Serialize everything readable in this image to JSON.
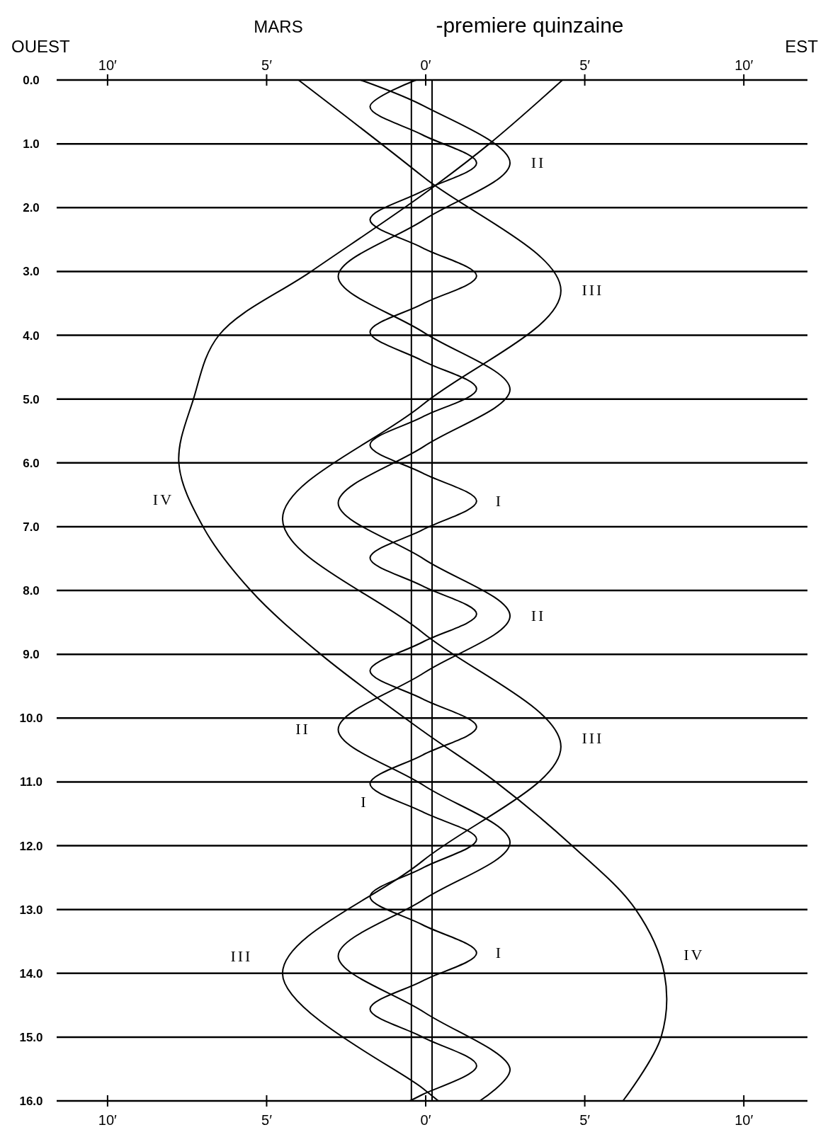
{
  "chart_data": {
    "type": "line",
    "title": "MARS",
    "subtitle": "-premiere quinzaine",
    "xlim": [
      -11.6,
      12
    ],
    "ylim": [
      16,
      0
    ],
    "xticks": [
      {
        "value": -10,
        "label": "10′"
      },
      {
        "value": -5,
        "label": "5′"
      },
      {
        "value": 0,
        "label": "0′"
      },
      {
        "value": 5,
        "label": "5′"
      },
      {
        "value": 10,
        "label": "10′"
      }
    ],
    "x2lim": [
      -11.6,
      12
    ],
    "x2ticks": [
      {
        "value": -10,
        "label": "10′"
      },
      {
        "value": -5,
        "label": "5′"
      },
      {
        "value": 0,
        "label": "0′"
      },
      {
        "value": 5,
        "label": "5′"
      },
      {
        "value": 10,
        "label": "10′"
      }
    ],
    "yticks": [
      {
        "value": 0,
        "label": "0.0"
      },
      {
        "value": 1,
        "label": "1.0"
      },
      {
        "value": 2,
        "label": "2.0"
      },
      {
        "value": 3,
        "label": "3.0"
      },
      {
        "value": 4,
        "label": "4.0"
      },
      {
        "value": 5,
        "label": "5.0"
      },
      {
        "value": 6,
        "label": "6.0"
      },
      {
        "value": 7,
        "label": "7.0"
      },
      {
        "value": 8,
        "label": "8.0"
      },
      {
        "value": 9,
        "label": "9.0"
      },
      {
        "value": 10,
        "label": "10.0"
      },
      {
        "value": 11,
        "label": "11.0"
      },
      {
        "value": 12,
        "label": "12.0"
      },
      {
        "value": 13,
        "label": "13.0"
      },
      {
        "value": 14,
        "label": "14.0"
      },
      {
        "value": 15,
        "label": "15.0"
      },
      {
        "value": 16,
        "label": "16.0"
      }
    ],
    "grid": "y",
    "marker": "none",
    "line_style": "solid",
    "series": [
      {
        "name": "I",
        "color": "#000000",
        "x": [
          -0.3,
          -1.75,
          -0.1,
          1.6,
          -0.1,
          -1.75,
          -0.1,
          1.6,
          -0.1,
          -1.75,
          -0.1,
          1.6,
          -0.1,
          -1.75,
          -0.1,
          1.6,
          -0.1,
          -1.75,
          -0.1,
          1.6,
          -0.1,
          -1.75,
          -0.1,
          1.6,
          -0.1,
          -1.75,
          -0.1,
          1.6,
          -0.1,
          -1.75,
          -0.1,
          1.6,
          -0.1,
          -1.75,
          -0.1,
          1.6,
          -0.1,
          -0.5
        ],
        "values": [
          0,
          0.42,
          0.86,
          1.3,
          1.74,
          2.19,
          2.63,
          3.07,
          3.51,
          3.95,
          4.4,
          4.84,
          5.28,
          5.72,
          6.16,
          6.6,
          7.05,
          7.49,
          7.93,
          8.37,
          8.81,
          9.26,
          9.7,
          10.14,
          10.58,
          11.03,
          11.47,
          11.9,
          12.35,
          12.8,
          13.24,
          13.68,
          14.12,
          14.56,
          15,
          15.45,
          15.9,
          16
        ]
      },
      {
        "name": "II",
        "color": "#000000",
        "x": [
          -2.05,
          -0.05,
          2.65,
          -0.05,
          -2.75,
          -0.05,
          2.65,
          -0.05,
          -2.75,
          -0.05,
          2.65,
          -0.05,
          -2.75,
          -0.05,
          2.65,
          -0.05,
          -2.75,
          -0.05,
          2.65,
          1.7
        ],
        "values": [
          0,
          0.41,
          1.3,
          2.19,
          3.08,
          3.96,
          4.85,
          5.74,
          6.63,
          7.51,
          8.4,
          9.29,
          10.18,
          11.06,
          11.95,
          12.84,
          13.73,
          14.61,
          15.5,
          16
        ]
      },
      {
        "name": "III",
        "color": "#000000",
        "x": [
          -4,
          -0.1,
          4.25,
          -0.1,
          -4.5,
          -0.1,
          4.25,
          -0.1,
          -4.5,
          -0.1,
          0.4
        ],
        "values": [
          0,
          1.51,
          3.3,
          5.09,
          6.88,
          8.66,
          10.45,
          12.24,
          14,
          15.8,
          16
        ]
      },
      {
        "name": "IV",
        "color": "#000000",
        "x": [
          4.3,
          2,
          -0.1,
          -3.6,
          -6.5,
          -7.3,
          -7.76,
          -7,
          -5.5,
          -3.3,
          -0.1,
          2.2,
          4.6,
          6.6,
          7.5,
          7.4,
          6.2
        ],
        "values": [
          0,
          1,
          1.8,
          3,
          4,
          5,
          6,
          7,
          8,
          9,
          10.2,
          11,
          12,
          13,
          14,
          15,
          16
        ]
      }
    ],
    "ref_lines": [
      {
        "axis": "x",
        "value": -0.45,
        "color": "#000000"
      },
      {
        "axis": "x",
        "value": 0.2,
        "color": "#000000"
      }
    ],
    "annotations": [
      "OUEST",
      "EST"
    ]
  }
}
